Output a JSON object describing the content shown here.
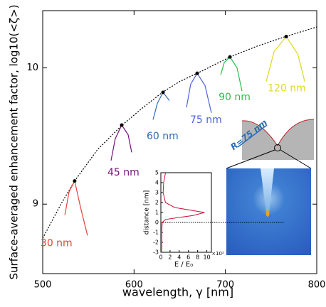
{
  "chart_data": [
    {
      "type": "line",
      "x_label": "wavelength, γ [nm]",
      "y_label": "Surface-averaged enhancement factor, log10(<ζ>)",
      "xlim": [
        500,
        800
      ],
      "ylim": [
        8.49,
        10.42
      ],
      "xticks": [
        500,
        600,
        700,
        800
      ],
      "yticks": [
        9,
        10
      ],
      "fit_curve": {
        "style": "dotted",
        "color": "#000000",
        "x": [
          500,
          520,
          535,
          560,
          587,
          610,
          631,
          650,
          669,
          690,
          705,
          735,
          766,
          800
        ],
        "values": [
          8.75,
          9.0,
          9.17,
          9.4,
          9.58,
          9.71,
          9.82,
          9.9,
          9.96,
          10.03,
          10.08,
          10.16,
          10.23,
          10.3
        ]
      },
      "series": [
        {
          "name": "30 nm",
          "color": "#e8413c",
          "x": [
            524.2,
            528.8,
            535,
            541.3,
            549
          ],
          "values": [
            8.92,
            9.09,
            9.17,
            8.98,
            8.77
          ]
        },
        {
          "name": "45 nm",
          "color": "#7b0f7b",
          "x": [
            574.8,
            579.4,
            586.5,
            593.5,
            597.4
          ],
          "values": [
            9.32,
            9.48,
            9.58,
            9.51,
            9.38
          ]
        },
        {
          "name": "60 nm",
          "color": "#2f6db5",
          "x": [
            620.8,
            625.5,
            631.7,
            638.7
          ],
          "values": [
            9.62,
            9.74,
            9.82,
            9.76
          ]
        },
        {
          "name": "75 nm",
          "color": "#4f63d8",
          "x": [
            657.4,
            662,
            669.1,
            677.7,
            684.7
          ],
          "values": [
            9.71,
            9.88,
            9.96,
            9.87,
            9.67
          ]
        },
        {
          "name": "90 nm",
          "color": "#2bbf4a",
          "x": [
            694.9,
            698.8,
            705,
            712.7,
            718.2
          ],
          "values": [
            9.95,
            10.04,
            10.08,
            10.0,
            9.83
          ]
        },
        {
          "name": "120 nm",
          "color": "#e0d820",
          "x": [
            744.7,
            753.3,
            766.6,
            779.3,
            786.8
          ],
          "values": [
            9.9,
            10.12,
            10.23,
            10.1,
            9.9
          ]
        }
      ],
      "annotations": [
        "R=75 nm"
      ]
    },
    {
      "type": "line",
      "x_label": "E / E₀",
      "x_multiplier": "×10²",
      "y_label": "distance [nm]",
      "xlim": [
        0,
        11
      ],
      "ylim": [
        -3,
        5
      ],
      "xticks": [
        0,
        2,
        4,
        6,
        8,
        10
      ],
      "yticks": [
        -3,
        -2,
        -1,
        0,
        1,
        2,
        3,
        4,
        5
      ],
      "curves": [
        {
          "color": "#d0103a",
          "x": [
            1.0,
            0.6,
            0.5,
            1.0,
            3.0,
            9.5,
            7.0,
            1.0,
            0.3,
            0.2,
            0.2
          ],
          "values": [
            5,
            4,
            3,
            2,
            1.5,
            1,
            0.7,
            0.3,
            0,
            -1,
            -3
          ]
        },
        {
          "color": "#2bbf4a",
          "x": [
            0.1,
            0.1
          ],
          "values": [
            -3,
            0
          ]
        }
      ]
    }
  ]
}
